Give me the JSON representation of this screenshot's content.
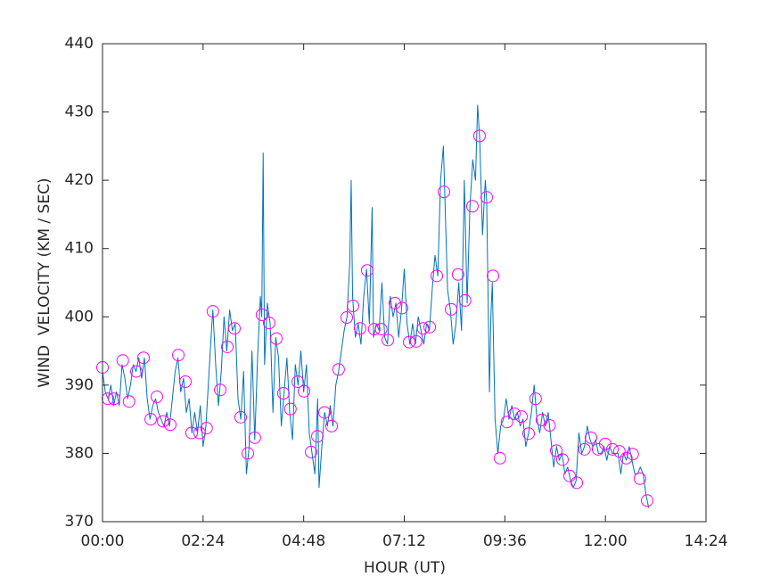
{
  "chart_data": {
    "type": "line",
    "xlabel": "HOUR (UT)",
    "ylabel": "WIND  VELOCITY (KM / SEC)",
    "xlim": [
      0,
      864
    ],
    "xticks": [
      {
        "value": 0,
        "label": "00:00"
      },
      {
        "value": 144,
        "label": "02:24"
      },
      {
        "value": 288,
        "label": "04:48"
      },
      {
        "value": 432,
        "label": "07:12"
      },
      {
        "value": 576,
        "label": "09:36"
      },
      {
        "value": 720,
        "label": "12:00"
      },
      {
        "value": 864,
        "label": "14:24"
      }
    ],
    "ylim": [
      370,
      440
    ],
    "yticks": [
      370,
      380,
      390,
      400,
      410,
      420,
      430,
      440
    ],
    "grid": false,
    "series": [
      {
        "color": "#0072bd",
        "marker": "none",
        "x": [
          0,
          4,
          8,
          12,
          16,
          20,
          24,
          28,
          32,
          36,
          40,
          44,
          48,
          52,
          56,
          60,
          64,
          68,
          72,
          76,
          80,
          84,
          88,
          92,
          96,
          100,
          104,
          108,
          112,
          116,
          120,
          124,
          128,
          132,
          136,
          140,
          144,
          148,
          152,
          156,
          158,
          162,
          166,
          170,
          174,
          178,
          182,
          186,
          190,
          194,
          198,
          202,
          206,
          210,
          214,
          218,
          222,
          226,
          228,
          230,
          232,
          236,
          240,
          244,
          248,
          252,
          256,
          260,
          264,
          268,
          272,
          276,
          280,
          284,
          288,
          292,
          296,
          300,
          304,
          308,
          310,
          314,
          318,
          322,
          326,
          330,
          334,
          338,
          342,
          346,
          350,
          354,
          356,
          358,
          362,
          366,
          370,
          374,
          378,
          382,
          386,
          388,
          392,
          396,
          400,
          404,
          408,
          412,
          416,
          420,
          424,
          428,
          432,
          436,
          440,
          444,
          448,
          452,
          456,
          460,
          464,
          468,
          472,
          476,
          480,
          484,
          488,
          490,
          494,
          498,
          502,
          506,
          510,
          514,
          518,
          522,
          526,
          530,
          534,
          537,
          540,
          544,
          548,
          550,
          554,
          556,
          558,
          562,
          566,
          570,
          574,
          578,
          582,
          586,
          590,
          594,
          598,
          602,
          606,
          610,
          614,
          618,
          622,
          626,
          630,
          634,
          638,
          642,
          646,
          650,
          654,
          658,
          662,
          666,
          670,
          674,
          678,
          682,
          686,
          690,
          694,
          698,
          702,
          706,
          710,
          714,
          718,
          722,
          726,
          730,
          734,
          738,
          742,
          746,
          750,
          754,
          758,
          762,
          766,
          770,
          774,
          778,
          782
        ],
        "values": [
          392,
          389,
          388,
          390,
          387,
          389,
          387,
          393,
          391,
          388,
          390,
          393,
          392,
          394,
          391,
          394,
          388,
          385,
          387,
          388,
          386,
          385,
          384,
          386,
          384,
          388,
          392,
          394,
          389,
          391,
          386,
          388,
          383,
          386,
          383,
          387,
          381,
          384,
          391,
          398,
          401,
          393,
          387,
          392,
          400,
          395,
          401,
          398,
          399,
          388,
          385,
          392,
          377,
          381,
          395,
          382,
          394,
          403,
          400,
          424,
          393,
          402,
          399,
          386,
          397,
          394,
          384,
          389,
          394,
          386,
          382,
          393,
          390,
          395,
          389,
          393,
          383,
          380,
          377,
          388,
          375,
          381,
          386,
          384,
          387,
          384,
          390,
          392,
          395,
          398,
          400,
          408,
          420,
          403,
          397,
          399,
          396,
          403,
          407,
          399,
          416,
          397,
          399,
          398,
          405,
          397,
          396,
          403,
          400,
          402,
          397,
          401,
          407,
          399,
          396,
          399,
          396,
          400,
          398,
          396,
          399,
          398,
          404,
          409,
          406,
          420,
          425,
          418,
          404,
          401,
          396,
          399,
          405,
          398,
          420,
          402,
          416,
          423,
          420,
          431,
          426,
          412,
          420,
          417,
          389,
          400,
          405,
          385,
          380,
          384,
          385,
          388,
          385,
          387,
          385,
          386,
          384,
          385,
          381,
          383,
          386,
          390,
          385,
          383,
          386,
          384,
          386,
          382,
          378,
          381,
          379,
          380,
          377,
          378,
          376,
          375,
          376,
          383,
          380,
          381,
          384,
          382,
          381,
          382,
          380,
          380,
          381,
          379,
          381,
          380,
          380,
          380,
          377,
          380,
          379,
          381,
          379,
          377,
          377,
          378,
          377,
          374,
          372
        ]
      },
      {
        "color": "#ff00ff",
        "marker": "o",
        "x": [
          0,
          7.7,
          16.6,
          29,
          38,
          48.5,
          58.7,
          69,
          77.8,
          86.8,
          97,
          108.5,
          118.7,
          127.6,
          139,
          149,
          158,
          168.5,
          178.7,
          188.9,
          197.8,
          208,
          218,
          228.4,
          238.6,
          248.9,
          259,
          269,
          279.5,
          288.4,
          298.6,
          307.6,
          317.8,
          328,
          338,
          349.7,
          358.6,
          368.8,
          379,
          389,
          399,
          408.4,
          418.6,
          428.8,
          439,
          449,
          459,
          468.4,
          478.6,
          488.8,
          499,
          509,
          519,
          529.6,
          539.8,
          550,
          559,
          569,
          579,
          589.6,
          599.8,
          610,
          620,
          629,
          640,
          649.6,
          658.5,
          668.7,
          679,
          690,
          699.3,
          709.5,
          719.7,
          730,
          740,
          750,
          759,
          769.5,
          779.7
        ],
        "values": [
          392.6,
          388,
          388,
          393.6,
          387.6,
          392,
          394,
          385,
          388.3,
          384.7,
          384.2,
          394.4,
          390.5,
          383,
          383,
          383.7,
          400.8,
          389.3,
          395.6,
          398.3,
          385.3,
          380,
          382.3,
          400.3,
          399.1,
          396.8,
          388.8,
          386.5,
          390.5,
          389.1,
          380.2,
          382.5,
          386,
          384,
          392.3,
          399.9,
          401.6,
          398.3,
          406.8,
          398.2,
          398.2,
          396.6,
          402,
          401.3,
          396.3,
          396.4,
          398.3,
          398.5,
          406,
          418.3,
          401.1,
          406.2,
          402.4,
          416.2,
          426.5,
          417.5,
          406,
          379.3,
          384.6,
          385.8,
          385.4,
          382.9,
          388,
          384.9,
          384.1,
          380.4,
          379.1,
          376.7,
          375.7,
          380.6,
          382.3,
          380.6,
          381.4,
          380.6,
          380.3,
          379.3,
          379.9,
          376.3,
          373.1
        ]
      }
    ]
  }
}
